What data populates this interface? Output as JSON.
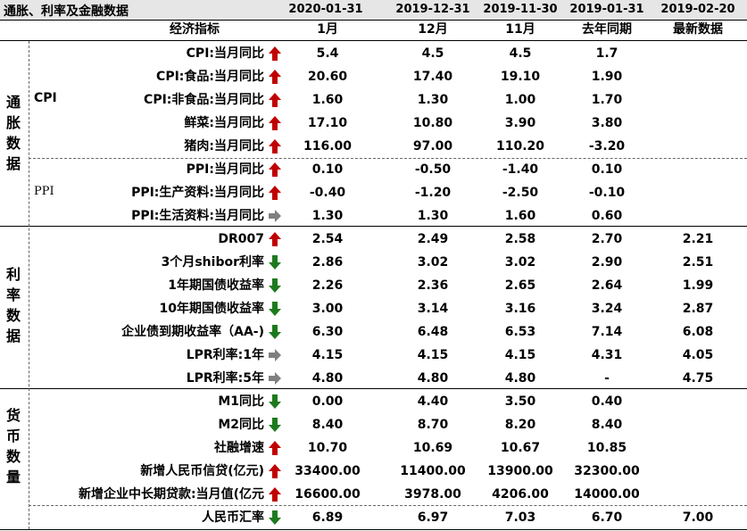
{
  "title": "通胀、利率及金融数据",
  "dates": [
    "2020-01-31",
    "2019-12-31",
    "2019-11-30",
    "2019-01-31",
    "2019-02-20"
  ],
  "col_headers": [
    "经济指标",
    "1月",
    "12月",
    "11月",
    "去年同期",
    "最新数据"
  ],
  "groups": {
    "inflation": "通胀数据",
    "rates": "利率数据",
    "money": "货币数量"
  },
  "subgroups": {
    "cpi": "CPI",
    "ppi": "PPI"
  },
  "rows": [
    {
      "name": "CPI:当月同比",
      "arrow": "up",
      "v1": "5.4",
      "v2": "4.5",
      "v3": "4.5",
      "v4": "1.7",
      "v5": ""
    },
    {
      "name": "CPI:食品:当月同比",
      "arrow": "up",
      "v1": "20.60",
      "v2": "17.40",
      "v3": "19.10",
      "v4": "1.90",
      "v5": ""
    },
    {
      "name": "CPI:非食品:当月同比",
      "arrow": "up",
      "v1": "1.60",
      "v2": "1.30",
      "v3": "1.00",
      "v4": "1.70",
      "v5": ""
    },
    {
      "name": "鲜菜:当月同比",
      "arrow": "up",
      "v1": "17.10",
      "v2": "10.80",
      "v3": "3.90",
      "v4": "3.80",
      "v5": ""
    },
    {
      "name": "猪肉:当月同比",
      "arrow": "up",
      "v1": "116.00",
      "v2": "97.00",
      "v3": "110.20",
      "v4": "-3.20",
      "v5": ""
    },
    {
      "name": "PPI:当月同比",
      "arrow": "up",
      "v1": "0.10",
      "v2": "-0.50",
      "v3": "-1.40",
      "v4": "0.10",
      "v5": ""
    },
    {
      "name": "PPI:生产资料:当月同比",
      "arrow": "up",
      "v1": "-0.40",
      "v2": "-1.20",
      "v3": "-2.50",
      "v4": "-0.10",
      "v5": ""
    },
    {
      "name": "PPI:生活资料:当月同比",
      "arrow": "right",
      "v1": "1.30",
      "v2": "1.30",
      "v3": "1.60",
      "v4": "0.60",
      "v5": ""
    },
    {
      "name": "DR007",
      "arrow": "up",
      "v1": "2.54",
      "v2": "2.49",
      "v3": "2.58",
      "v4": "2.70",
      "v5": "2.21"
    },
    {
      "name": "3个月shibor利率",
      "arrow": "down",
      "v1": "2.86",
      "v2": "3.02",
      "v3": "3.02",
      "v4": "2.90",
      "v5": "2.51"
    },
    {
      "name": "1年期国债收益率",
      "arrow": "down",
      "v1": "2.26",
      "v2": "2.36",
      "v3": "2.65",
      "v4": "2.64",
      "v5": "1.99"
    },
    {
      "name": "10年期国债收益率",
      "arrow": "down",
      "v1": "3.00",
      "v2": "3.14",
      "v3": "3.16",
      "v4": "3.24",
      "v5": "2.87"
    },
    {
      "name": "企业债到期收益率（AA-)",
      "arrow": "down",
      "v1": "6.30",
      "v2": "6.48",
      "v3": "6.53",
      "v4": "7.14",
      "v5": "6.08"
    },
    {
      "name": "LPR利率:1年",
      "arrow": "right",
      "v1": "4.15",
      "v2": "4.15",
      "v3": "4.15",
      "v4": "4.31",
      "v5": "4.05"
    },
    {
      "name": "LPR利率:5年",
      "arrow": "right",
      "v1": "4.80",
      "v2": "4.80",
      "v3": "4.80",
      "v4": "-",
      "v5": "4.75"
    },
    {
      "name": "M1同比",
      "arrow": "down",
      "v1": "0.00",
      "v2": "4.40",
      "v3": "3.50",
      "v4": "0.40",
      "v5": ""
    },
    {
      "name": "M2同比",
      "arrow": "down",
      "v1": "8.40",
      "v2": "8.70",
      "v3": "8.20",
      "v4": "8.40",
      "v5": ""
    },
    {
      "name": "社融增速",
      "arrow": "up",
      "v1": "10.70",
      "v2": "10.69",
      "v3": "10.67",
      "v4": "10.85",
      "v5": ""
    },
    {
      "name": "新增人民币信贷(亿元)",
      "arrow": "up",
      "v1": "33400.00",
      "v2": "11400.00",
      "v3": "13900.00",
      "v4": "32300.00",
      "v5": ""
    },
    {
      "name": "新增企业中长期贷款:当月值(亿元",
      "arrow": "up",
      "v1": "16600.00",
      "v2": "3978.00",
      "v3": "4206.00",
      "v4": "14000.00",
      "v5": ""
    },
    {
      "name": "人民币汇率",
      "arrow": "down",
      "v1": "6.89",
      "v2": "6.97",
      "v3": "7.03",
      "v4": "6.70",
      "v5": "7.00"
    }
  ],
  "colors": {
    "up": "#c00000",
    "down": "#1e7a1e",
    "right": "#7f7f7f",
    "header_bg": "#e6e6e6"
  }
}
